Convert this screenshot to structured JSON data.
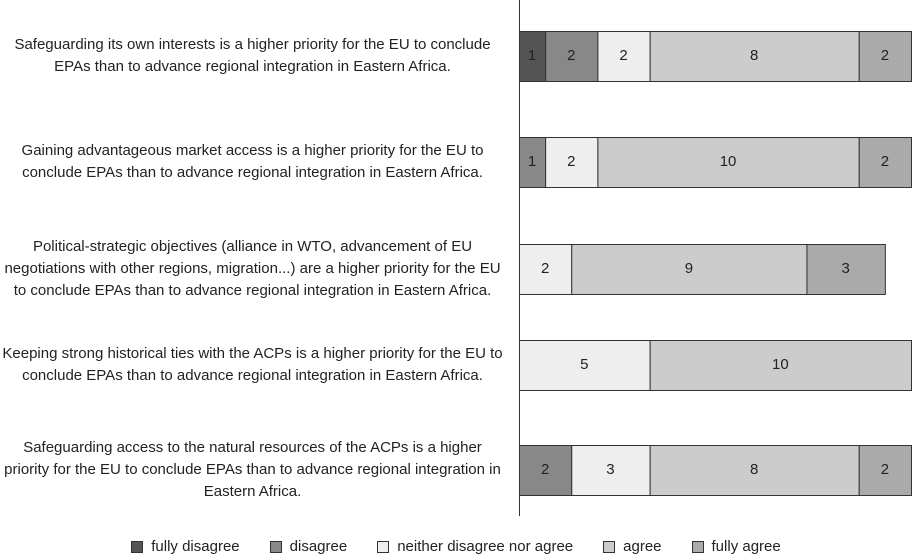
{
  "chart_data": {
    "type": "stacked-bar-horizontal",
    "categories": [
      "Safeguarding its own interests is a higher priority for the EU to conclude EPAs than to advance regional integration in Eastern Africa.",
      "Gaining advantageous market access is a higher priority for the EU to conclude EPAs than to advance regional integration in Eastern Africa.",
      "Political-strategic objectives (alliance in WTO, advancement of EU negotiations with other regions, migration...) are a higher priority for the EU to conclude EPAs than to advance regional integration in Eastern Africa.",
      "Keeping strong historical ties with the ACPs is a higher priority for the EU to conclude EPAs than to advance regional integration in Eastern Africa.",
      "Safeguarding access to the natural resources of the ACPs is a higher priority for the EU to conclude EPAs than to advance regional integration in Eastern Africa."
    ],
    "series": [
      {
        "name": "fully disagree",
        "color": "#555555",
        "values": [
          1,
          null,
          null,
          null,
          null
        ]
      },
      {
        "name": "disagree",
        "color": "#888888",
        "values": [
          2,
          1,
          null,
          null,
          2
        ]
      },
      {
        "name": "neither disagree nor agree",
        "color": "#eeeeee",
        "values": [
          2,
          2,
          2,
          5,
          3
        ]
      },
      {
        "name": "agree",
        "color": "#cccccc",
        "values": [
          8,
          10,
          9,
          10,
          8
        ]
      },
      {
        "name": "fully agree",
        "color": "#aaaaaa",
        "values": [
          2,
          2,
          3,
          null,
          2
        ]
      }
    ]
  }
}
